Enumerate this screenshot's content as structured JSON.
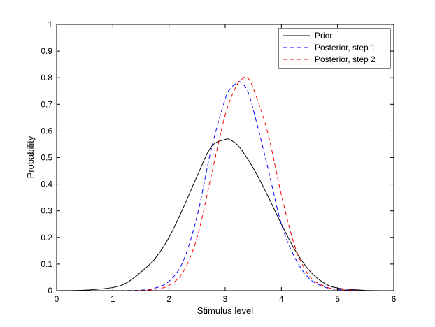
{
  "chart_data": {
    "type": "line",
    "title": "",
    "xlabel": "Stimulus level",
    "ylabel": "Probability",
    "xlim": [
      0,
      6
    ],
    "ylim": [
      0,
      1
    ],
    "xticks": [
      "0",
      "1",
      "2",
      "3",
      "4",
      "5",
      "6"
    ],
    "yticks": [
      "0",
      "0.1",
      "0.2",
      "0.3",
      "0.4",
      "0.5",
      "0.6",
      "0.7",
      "0.8",
      "0.9",
      "1"
    ],
    "grid": false,
    "legend_position": "top-right",
    "series": [
      {
        "name": "Prior",
        "color": "#000000",
        "dash": "solid",
        "x": [
          0,
          0.5,
          1.0,
          1.25,
          1.5,
          1.75,
          2.0,
          2.25,
          2.5,
          2.75,
          3.0,
          3.1,
          3.25,
          3.5,
          3.75,
          4.0,
          4.25,
          4.5,
          4.75,
          5.0,
          5.5,
          6.0
        ],
        "y": [
          0,
          0.002,
          0.012,
          0.03,
          0.07,
          0.12,
          0.2,
          0.31,
          0.43,
          0.54,
          0.568,
          0.565,
          0.54,
          0.46,
          0.36,
          0.25,
          0.15,
          0.075,
          0.03,
          0.01,
          0.001,
          0
        ]
      },
      {
        "name": "Posterior, step 1",
        "color": "#0000ff",
        "dash": "dashed",
        "x": [
          0,
          1.0,
          1.5,
          1.75,
          2.0,
          2.25,
          2.5,
          2.75,
          3.0,
          3.1,
          3.2,
          3.25,
          3.3,
          3.4,
          3.5,
          3.75,
          4.0,
          4.25,
          4.5,
          4.75,
          5.0,
          5.5,
          6.0
        ],
        "y": [
          0,
          0,
          0.002,
          0.01,
          0.035,
          0.11,
          0.28,
          0.53,
          0.72,
          0.76,
          0.78,
          0.785,
          0.78,
          0.75,
          0.68,
          0.47,
          0.25,
          0.12,
          0.045,
          0.015,
          0.004,
          0,
          0
        ]
      },
      {
        "name": "Posterior, step 2",
        "color": "#ff0000",
        "dash": "dashed",
        "x": [
          0,
          1.0,
          1.5,
          1.75,
          2.0,
          2.25,
          2.5,
          2.75,
          3.0,
          3.2,
          3.3,
          3.35,
          3.4,
          3.5,
          3.75,
          4.0,
          4.25,
          4.5,
          4.75,
          5.0,
          5.5,
          6.0
        ],
        "y": [
          0,
          0,
          0.001,
          0.005,
          0.02,
          0.07,
          0.2,
          0.43,
          0.66,
          0.77,
          0.795,
          0.803,
          0.8,
          0.76,
          0.6,
          0.36,
          0.16,
          0.055,
          0.018,
          0.005,
          0,
          0
        ]
      }
    ]
  }
}
